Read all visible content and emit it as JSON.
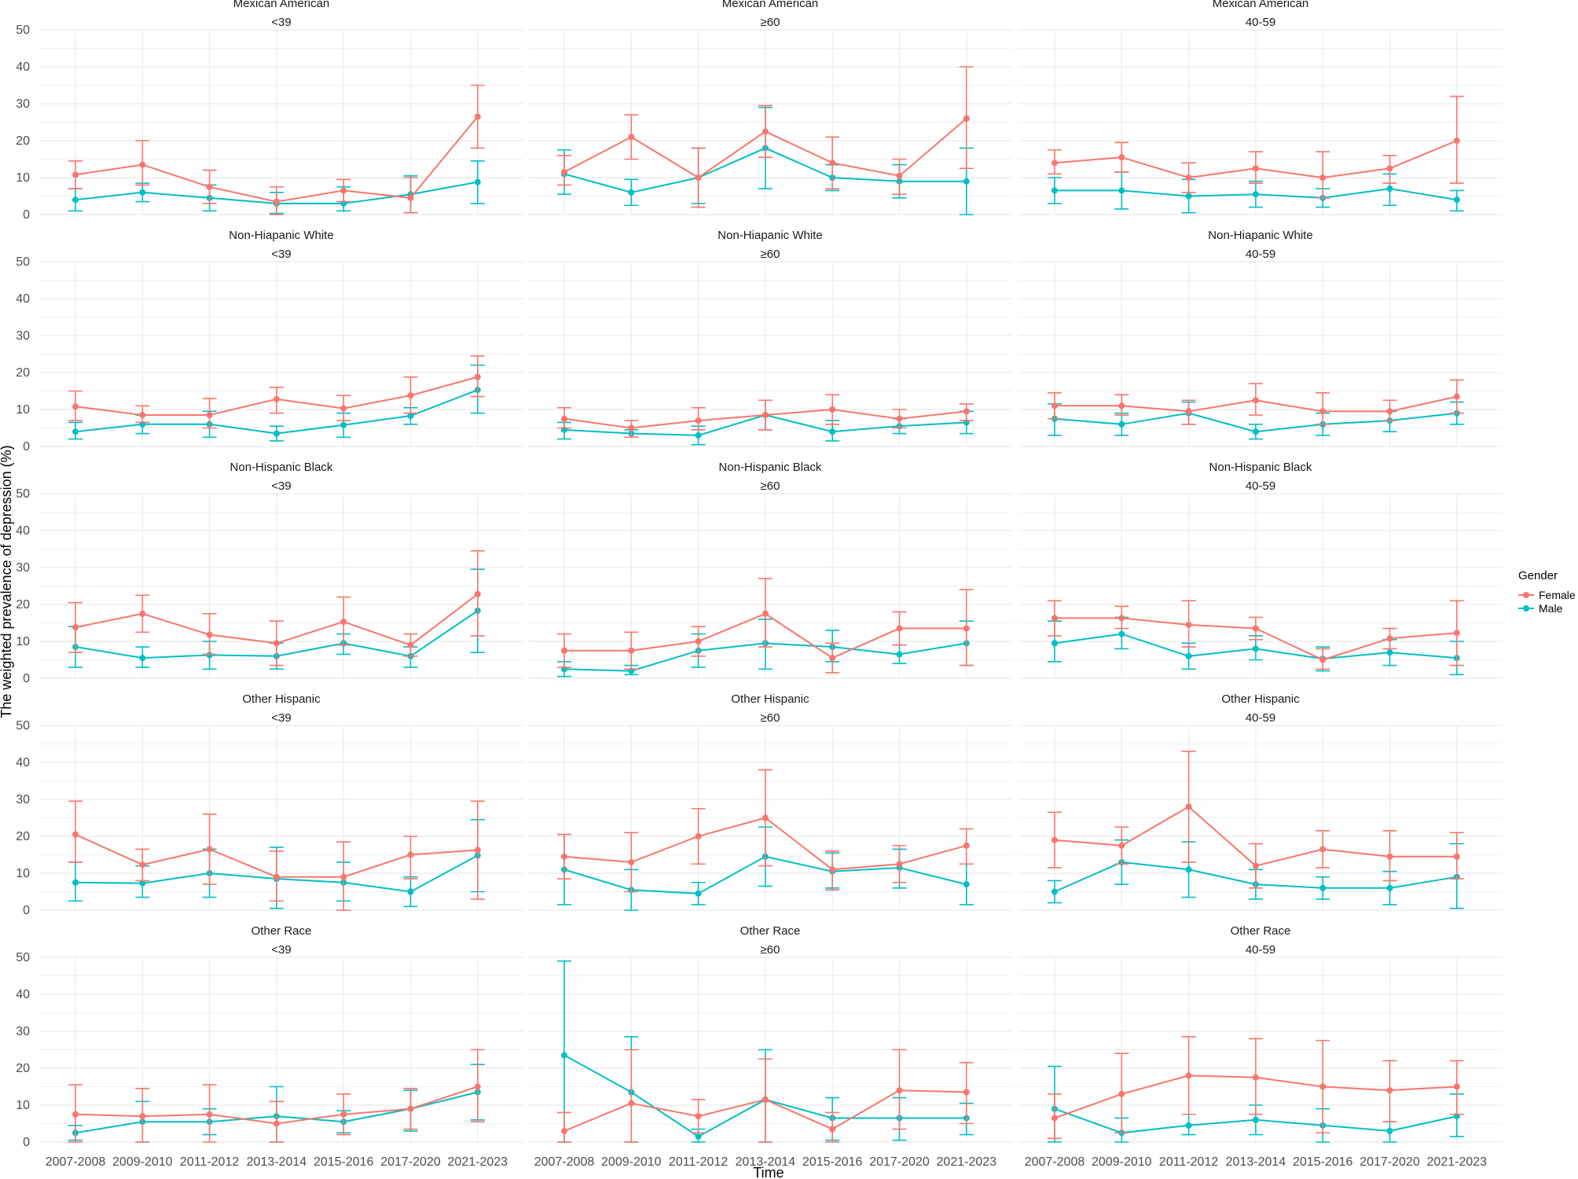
{
  "chart_data": {
    "type": "line",
    "facet_layout": "5 rows x 3 columns",
    "xlabel": "Time",
    "ylabel": "The weighted prevalence of depression (%)",
    "ylim": [
      0,
      50
    ],
    "y_ticks": [
      "0",
      "10",
      "20",
      "30",
      "40",
      "50"
    ],
    "categories": [
      "2007-2008",
      "2009-2010",
      "2011-2012",
      "2013-2014",
      "2015-2016",
      "2017-2020",
      "2021-2023"
    ],
    "legend": {
      "title": "Gender",
      "placement": "right",
      "entries": [
        {
          "name": "Female",
          "color": "#F8766D"
        },
        {
          "name": "Male",
          "color": "#00BFC4"
        }
      ]
    },
    "grid": true,
    "panels": [
      {
        "race": "Mexican American",
        "age": "<39",
        "series": [
          {
            "name": "Female",
            "values": [
              10.8,
              13.5,
              7.5,
              3.5,
              6.5,
              4.5,
              26.5
            ],
            "lower": [
              7.0,
              8.0,
              3.0,
              0.0,
              3.5,
              0.5,
              18.0
            ],
            "upper": [
              14.5,
              20.0,
              12.0,
              7.5,
              9.5,
              10.0,
              35.0
            ]
          },
          {
            "name": "Male",
            "values": [
              4.0,
              6.0,
              4.5,
              3.0,
              3.0,
              5.5,
              8.8
            ],
            "lower": [
              1.0,
              3.5,
              1.0,
              0.3,
              1.0,
              0.5,
              3.0
            ],
            "upper": [
              7.0,
              8.5,
              8.0,
              6.0,
              7.5,
              10.5,
              14.5
            ]
          }
        ]
      },
      {
        "race": "Mexican American",
        "age": "≥60",
        "series": [
          {
            "name": "Female",
            "values": [
              11.5,
              21.0,
              10.0,
              22.5,
              14.0,
              10.5,
              26.0
            ],
            "lower": [
              8.0,
              15.0,
              2.0,
              15.5,
              7.0,
              5.5,
              12.5
            ],
            "upper": [
              16.0,
              27.0,
              18.0,
              29.5,
              21.0,
              15.0,
              40.0
            ]
          },
          {
            "name": "Male",
            "values": [
              11.0,
              6.0,
              10.0,
              18.0,
              10.0,
              9.0,
              9.0
            ],
            "lower": [
              5.5,
              2.5,
              3.0,
              7.0,
              6.5,
              4.5,
              0.0
            ],
            "upper": [
              17.5,
              9.5,
              18.0,
              29.0,
              13.5,
              13.5,
              18.0
            ]
          }
        ]
      },
      {
        "race": "Mexican American",
        "age": "40-59",
        "series": [
          {
            "name": "Female",
            "values": [
              14.0,
              15.5,
              10.0,
              12.5,
              10.0,
              12.5,
              20.0
            ],
            "lower": [
              11.0,
              11.5,
              6.0,
              8.5,
              4.5,
              8.5,
              8.5
            ],
            "upper": [
              17.5,
              19.5,
              14.0,
              17.0,
              17.0,
              16.0,
              32.0
            ]
          },
          {
            "name": "Male",
            "values": [
              6.5,
              6.5,
              5.0,
              5.5,
              4.5,
              7.0,
              4.0
            ],
            "lower": [
              3.0,
              1.5,
              0.5,
              2.0,
              2.0,
              2.5,
              1.0
            ],
            "upper": [
              10.0,
              11.5,
              9.5,
              9.0,
              7.0,
              11.0,
              6.5
            ]
          }
        ]
      },
      {
        "race": "Non-Hiapanic White",
        "age": "<39",
        "series": [
          {
            "name": "Female",
            "values": [
              10.8,
              8.5,
              8.5,
              12.8,
              10.3,
              13.8,
              18.8
            ],
            "lower": [
              7.0,
              6.5,
              5.0,
              9.0,
              7.0,
              9.0,
              13.5
            ],
            "upper": [
              15.0,
              11.0,
              13.0,
              16.0,
              13.8,
              18.8,
              24.5
            ]
          },
          {
            "name": "Male",
            "values": [
              4.0,
              6.0,
              6.0,
              3.5,
              5.8,
              8.3,
              15.3
            ],
            "lower": [
              2.0,
              3.5,
              2.5,
              1.5,
              2.5,
              6.0,
              9.0
            ],
            "upper": [
              6.5,
              8.5,
              9.5,
              5.5,
              9.0,
              10.5,
              22.0
            ]
          }
        ]
      },
      {
        "race": "Non-Hiapanic White",
        "age": "≥60",
        "series": [
          {
            "name": "Female",
            "values": [
              7.5,
              5.0,
              7.0,
              8.5,
              10.0,
              7.5,
              9.5
            ],
            "lower": [
              5.0,
              2.5,
              4.5,
              4.5,
              6.0,
              5.0,
              7.0
            ],
            "upper": [
              10.5,
              7.0,
              10.5,
              12.5,
              14.0,
              10.0,
              11.5
            ]
          },
          {
            "name": "Male",
            "values": [
              4.5,
              3.5,
              3.0,
              8.5,
              4.0,
              5.5,
              6.5
            ],
            "lower": [
              2.0,
              2.5,
              0.5,
              4.5,
              1.5,
              3.5,
              3.5
            ],
            "upper": [
              6.5,
              4.5,
              5.5,
              12.5,
              7.0,
              7.5,
              9.5
            ]
          }
        ]
      },
      {
        "race": "Non-Hiapanic White",
        "age": "40-59",
        "series": [
          {
            "name": "Female",
            "values": [
              11.0,
              11.0,
              9.5,
              12.5,
              9.5,
              9.5,
              13.5
            ],
            "lower": [
              7.5,
              8.5,
              6.0,
              8.5,
              6.0,
              7.0,
              9.0
            ],
            "upper": [
              14.5,
              14.0,
              12.5,
              17.0,
              14.5,
              12.5,
              18.0
            ]
          },
          {
            "name": "Male",
            "values": [
              7.5,
              6.0,
              9.0,
              4.0,
              6.0,
              7.0,
              9.0
            ],
            "lower": [
              3.0,
              3.0,
              6.0,
              2.0,
              3.0,
              4.0,
              6.0
            ],
            "upper": [
              11.5,
              9.0,
              12.0,
              6.0,
              9.0,
              9.5,
              12.0
            ]
          }
        ]
      },
      {
        "race": "Non-Hispanic Black",
        "age": "<39",
        "series": [
          {
            "name": "Female",
            "values": [
              13.8,
              17.5,
              11.8,
              9.5,
              15.3,
              9.0,
              22.8
            ],
            "lower": [
              7.0,
              12.5,
              6.5,
              3.5,
              9.0,
              6.0,
              11.5
            ],
            "upper": [
              20.5,
              22.5,
              17.5,
              15.5,
              22.0,
              12.0,
              34.5
            ]
          },
          {
            "name": "Male",
            "values": [
              8.5,
              5.5,
              6.3,
              6.0,
              9.5,
              6.0,
              18.3
            ],
            "lower": [
              3.0,
              3.0,
              2.5,
              2.5,
              6.5,
              3.0,
              7.0
            ],
            "upper": [
              14.0,
              8.5,
              10.0,
              9.5,
              12.0,
              8.5,
              29.5
            ]
          }
        ]
      },
      {
        "race": "Non-Hispanic Black",
        "age": "≥60",
        "series": [
          {
            "name": "Female",
            "values": [
              7.5,
              7.5,
              10.0,
              17.5,
              5.5,
              13.5,
              13.5
            ],
            "lower": [
              3.0,
              2.5,
              6.0,
              8.5,
              1.5,
              9.0,
              3.5
            ],
            "upper": [
              12.0,
              12.5,
              14.0,
              27.0,
              9.5,
              18.0,
              24.0
            ]
          },
          {
            "name": "Male",
            "values": [
              2.5,
              2.0,
              7.5,
              9.5,
              8.5,
              6.5,
              9.5
            ],
            "lower": [
              0.5,
              1.0,
              3.0,
              2.5,
              4.5,
              4.0,
              3.5
            ],
            "upper": [
              4.5,
              3.5,
              12.0,
              16.0,
              13.0,
              9.0,
              15.5
            ]
          }
        ]
      },
      {
        "race": "Non-Hispanic Black",
        "age": "40-59",
        "series": [
          {
            "name": "Female",
            "values": [
              16.3,
              16.3,
              14.5,
              13.5,
              5.0,
              10.8,
              12.3
            ],
            "lower": [
              11.5,
              13.5,
              8.5,
              10.5,
              2.5,
              8.0,
              3.5
            ],
            "upper": [
              21.0,
              19.5,
              21.0,
              16.5,
              8.0,
              13.5,
              21.0
            ]
          },
          {
            "name": "Male",
            "values": [
              9.5,
              12.0,
              6.0,
              8.0,
              5.3,
              7.0,
              5.5
            ],
            "lower": [
              4.5,
              8.0,
              2.5,
              5.0,
              2.0,
              3.5,
              1.0
            ],
            "upper": [
              15.5,
              16.5,
              9.5,
              11.5,
              8.5,
              10.5,
              10.0
            ]
          }
        ]
      },
      {
        "race": "Other Hispanic",
        "age": "<39",
        "series": [
          {
            "name": "Female",
            "values": [
              20.5,
              12.3,
              16.5,
              9.0,
              9.0,
              15.0,
              16.3
            ],
            "lower": [
              13.0,
              8.0,
              7.0,
              2.5,
              0.0,
              8.5,
              3.0
            ],
            "upper": [
              29.5,
              16.5,
              26.0,
              16.0,
              18.5,
              20.0,
              29.5
            ]
          },
          {
            "name": "Male",
            "values": [
              7.5,
              7.3,
              10.0,
              8.5,
              7.5,
              5.0,
              14.8
            ],
            "lower": [
              2.5,
              3.5,
              3.5,
              0.5,
              2.5,
              1.0,
              5.0
            ],
            "upper": [
              13.0,
              12.0,
              16.5,
              17.0,
              13.0,
              9.0,
              24.5
            ]
          }
        ]
      },
      {
        "race": "Other Hispanic",
        "age": "≥60",
        "series": [
          {
            "name": "Female",
            "values": [
              14.5,
              13.0,
              20.0,
              25.0,
              11.0,
              12.5,
              17.5
            ],
            "lower": [
              8.5,
              5.0,
              12.5,
              12.0,
              5.5,
              7.5,
              12.5
            ],
            "upper": [
              20.5,
              21.0,
              27.5,
              38.0,
              16.0,
              17.5,
              22.0
            ]
          },
          {
            "name": "Male",
            "values": [
              11.0,
              5.5,
              4.5,
              14.5,
              10.5,
              11.5,
              7.0
            ],
            "lower": [
              1.5,
              0.0,
              1.5,
              6.5,
              6.0,
              6.0,
              1.5
            ],
            "upper": [
              20.5,
              11.0,
              7.5,
              22.5,
              15.5,
              16.5,
              12.5
            ]
          }
        ]
      },
      {
        "race": "Other Hispanic",
        "age": "40-59",
        "series": [
          {
            "name": "Female",
            "values": [
              19.0,
              17.5,
              28.0,
              12.0,
              16.5,
              14.5,
              14.5
            ],
            "lower": [
              11.5,
              12.5,
              13.0,
              6.0,
              11.5,
              8.0,
              8.5
            ],
            "upper": [
              26.5,
              22.5,
              43.0,
              18.0,
              21.5,
              21.5,
              21.0
            ]
          },
          {
            "name": "Male",
            "values": [
              5.0,
              13.0,
              11.0,
              7.0,
              6.0,
              6.0,
              9.0
            ],
            "lower": [
              2.0,
              7.0,
              3.5,
              3.0,
              3.0,
              1.5,
              0.5
            ],
            "upper": [
              8.0,
              19.0,
              18.5,
              11.0,
              9.0,
              10.5,
              18.0
            ]
          }
        ]
      },
      {
        "race": "Other Race",
        "age": "<39",
        "series": [
          {
            "name": "Female",
            "values": [
              7.5,
              7.0,
              7.5,
              5.0,
              7.5,
              9.0,
              15.0
            ],
            "lower": [
              0.0,
              0.0,
              0.0,
              0.0,
              2.0,
              3.5,
              5.5
            ],
            "upper": [
              15.5,
              14.5,
              15.5,
              11.0,
              13.0,
              14.5,
              25.0
            ]
          },
          {
            "name": "Male",
            "values": [
              2.5,
              5.5,
              5.5,
              7.0,
              5.5,
              9.0,
              13.5
            ],
            "lower": [
              0.5,
              0.0,
              2.0,
              0.0,
              2.5,
              3.0,
              6.0
            ],
            "upper": [
              4.5,
              11.0,
              9.0,
              15.0,
              8.5,
              14.0,
              21.0
            ]
          }
        ]
      },
      {
        "race": "Other Race",
        "age": "≥60",
        "series": [
          {
            "name": "Female",
            "values": [
              3.0,
              10.5,
              7.0,
              11.5,
              3.5,
              14.0,
              13.5
            ],
            "lower": [
              0.0,
              0.0,
              2.5,
              0.0,
              0.0,
              3.5,
              5.0
            ],
            "upper": [
              8.0,
              25.0,
              11.5,
              22.5,
              8.0,
              25.0,
              21.5
            ]
          },
          {
            "name": "Male",
            "values": [
              23.5,
              13.5,
              1.5,
              11.5,
              6.5,
              6.5,
              6.5
            ],
            "lower": [
              0.0,
              0.0,
              0.0,
              0.0,
              0.5,
              0.5,
              2.0
            ],
            "upper": [
              49.0,
              28.5,
              3.5,
              25.0,
              12.0,
              12.0,
              10.5
            ]
          }
        ]
      },
      {
        "race": "Other Race",
        "age": "40-59",
        "series": [
          {
            "name": "Female",
            "values": [
              6.5,
              13.0,
              18.0,
              17.5,
              15.0,
              14.0,
              15.0
            ],
            "lower": [
              1.0,
              2.5,
              7.5,
              7.5,
              2.5,
              5.5,
              7.5
            ],
            "upper": [
              13.0,
              24.0,
              28.5,
              28.0,
              27.5,
              22.0,
              22.0
            ]
          },
          {
            "name": "Male",
            "values": [
              9.0,
              2.5,
              4.5,
              6.0,
              4.5,
              3.0,
              7.0
            ],
            "lower": [
              0.0,
              0.0,
              2.0,
              2.0,
              0.0,
              0.0,
              1.5
            ],
            "upper": [
              20.5,
              6.5,
              7.5,
              10.0,
              9.0,
              5.5,
              13.0
            ]
          }
        ]
      }
    ]
  }
}
